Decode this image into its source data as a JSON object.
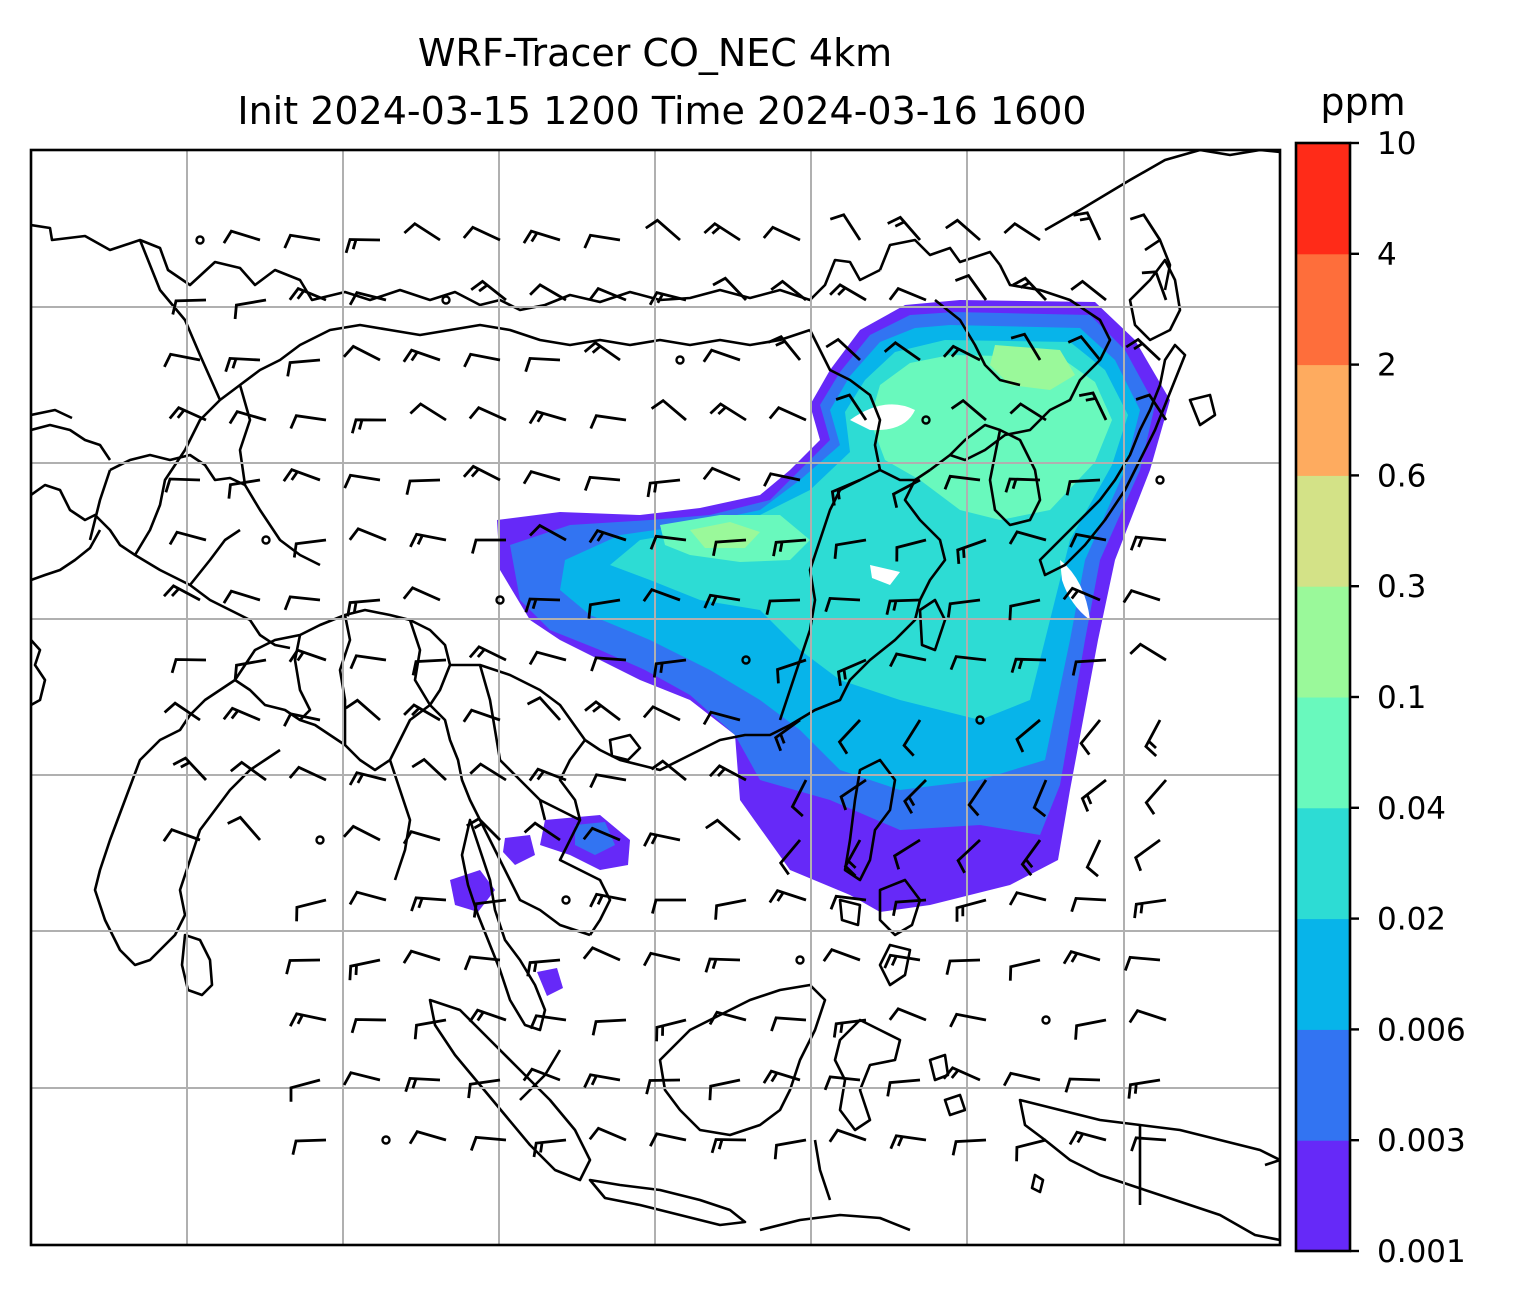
{
  "chart_data": {
    "type": "heatmap",
    "title": "WRF-Tracer CO_NEC 4km",
    "subtitle": "Init 2024-03-15 1200 Time 2024-03-16 1600",
    "xlabel": "",
    "ylabel": "",
    "grid": true,
    "legend": "right",
    "colorbar": {
      "label": "ppm",
      "levels": [
        "0.001",
        "0.003",
        "0.006",
        "0.02",
        "0.04",
        "0.1",
        "0.3",
        "0.6",
        "2",
        "4",
        "10"
      ],
      "colors": [
        "#6629f8",
        "#3274f2",
        "#07b4ea",
        "#2ddcd4",
        "#69f9bd",
        "#9af99a",
        "#d3e287",
        "#feab5f",
        "#fe6e3b",
        "#ff2b18"
      ]
    },
    "overlays": [
      "wind barbs",
      "coastlines and country borders"
    ]
  }
}
